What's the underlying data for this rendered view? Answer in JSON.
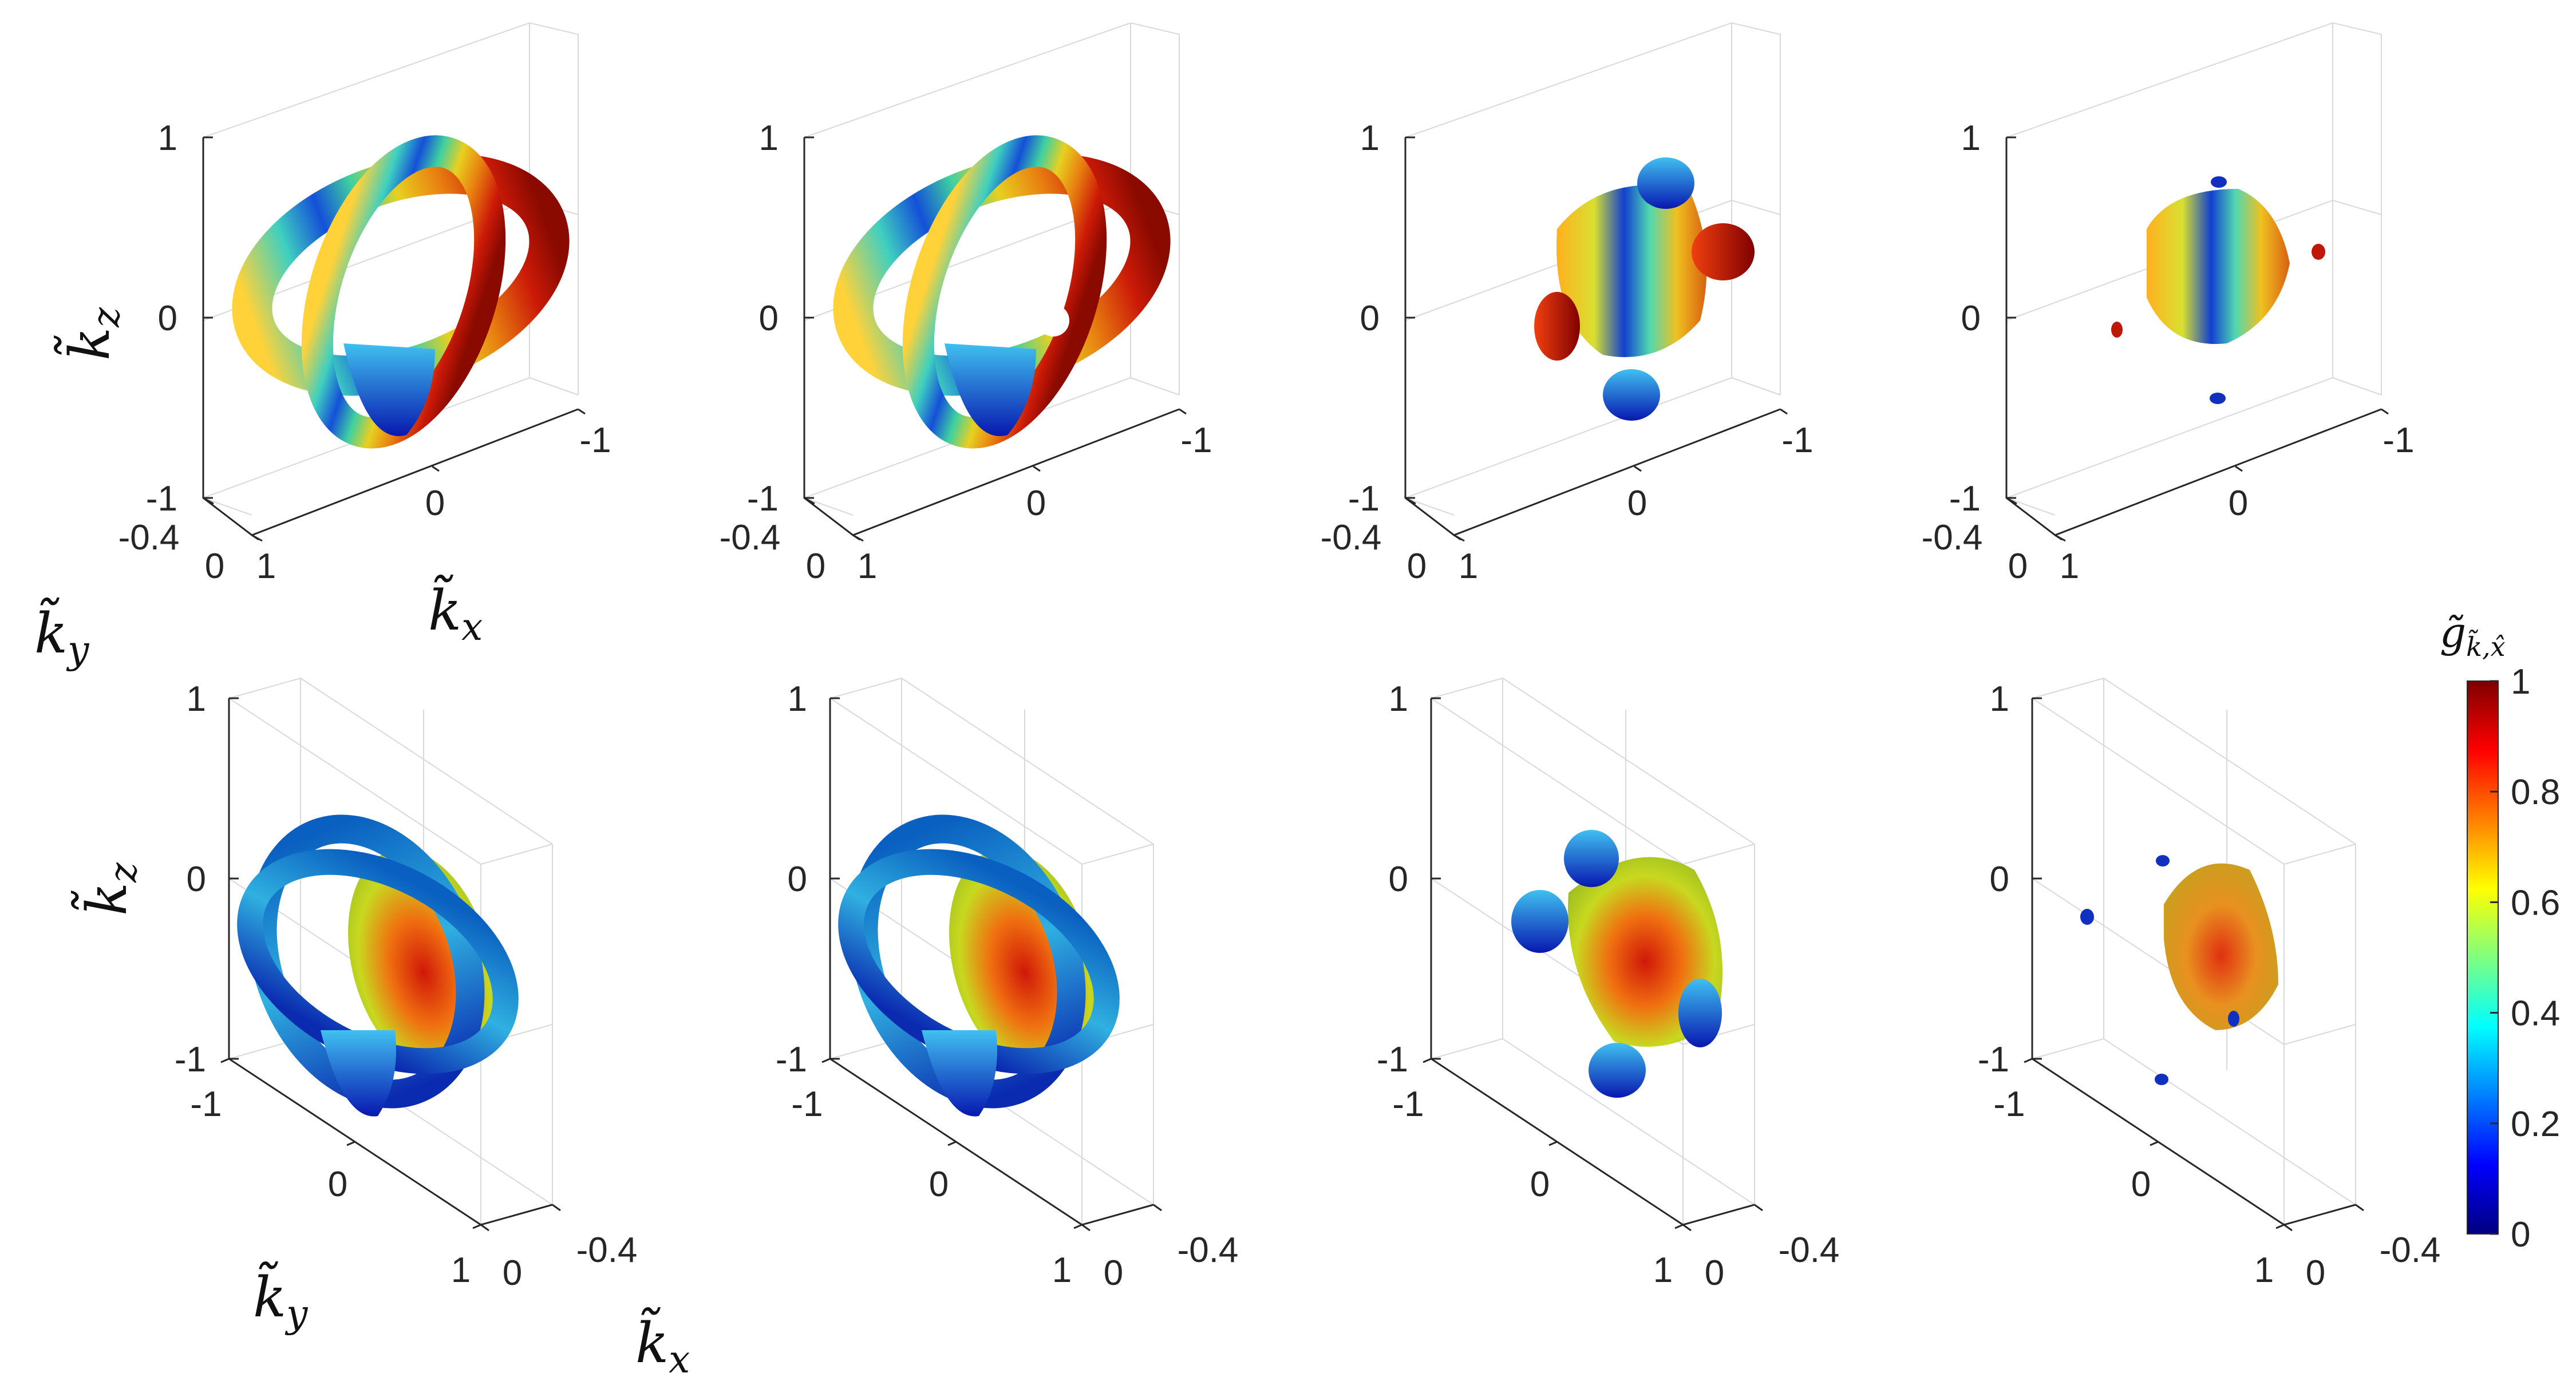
{
  "figure": {
    "colorbar": {
      "label_main": "g̃",
      "label_sub": "k̃,x̂",
      "ticks": [
        "0",
        "0.2",
        "0.4",
        "0.6",
        "0.8",
        "1"
      ],
      "range": [
        0,
        1
      ],
      "colormap": "jet",
      "colors": [
        "#00007f",
        "#0000ff",
        "#007fff",
        "#00ffff",
        "#7fff7f",
        "#ffff00",
        "#ff7f00",
        "#ff0000",
        "#7f0000"
      ]
    },
    "top_row": {
      "kz_label": "k̃",
      "kz_sub": "z",
      "kz_ticks": [
        "1",
        "0",
        "-1"
      ],
      "kx_label": "k̃",
      "kx_sub": "x",
      "kx_ticks": [
        "-1",
        "0",
        "1"
      ],
      "ky_label": "k̃",
      "ky_sub": "y",
      "ky_ticks": [
        "-0.4",
        "0"
      ]
    },
    "bottom_row": {
      "kz_label": "k̃",
      "kz_sub": "z",
      "kz_ticks": [
        "1",
        "0",
        "-1"
      ],
      "ky_label": "k̃",
      "ky_sub": "y",
      "ky_ticks": [
        "-1",
        "0",
        "1"
      ],
      "kx_label": "k̃",
      "kx_sub": "x",
      "kx_ticks": [
        "0",
        "-0.4"
      ]
    },
    "panels": 8
  }
}
